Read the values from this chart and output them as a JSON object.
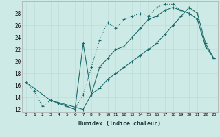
{
  "xlabel": "Humidex (Indice chaleur)",
  "xlim": [
    -0.5,
    23.5
  ],
  "ylim": [
    11.5,
    30
  ],
  "xticks": [
    0,
    1,
    2,
    3,
    4,
    5,
    6,
    7,
    8,
    9,
    10,
    11,
    12,
    13,
    14,
    15,
    16,
    17,
    18,
    19,
    20,
    21,
    22,
    23
  ],
  "yticks": [
    12,
    14,
    16,
    18,
    20,
    22,
    24,
    26,
    28
  ],
  "bg_color": "#ceeae6",
  "line_color": "#1a6b6b",
  "curve1_x": [
    0,
    1,
    2,
    3,
    4,
    5,
    6,
    7,
    8,
    9,
    10,
    11,
    12,
    13,
    14,
    15,
    16,
    17,
    18,
    19,
    20,
    21,
    22,
    23
  ],
  "curve1_y": [
    16.5,
    15.0,
    12.5,
    13.5,
    13.0,
    12.5,
    12.0,
    14.5,
    19.0,
    23.5,
    26.5,
    25.5,
    27.0,
    27.5,
    28.0,
    27.5,
    29.0,
    29.5,
    29.5,
    28.5,
    28.0,
    27.0,
    22.5,
    20.5
  ],
  "curve2_x": [
    3,
    4,
    5,
    6,
    7,
    8,
    9,
    10,
    11,
    12,
    13,
    14,
    15,
    16,
    17,
    18,
    19,
    20,
    21,
    22,
    23
  ],
  "curve2_y": [
    13.5,
    13.0,
    12.5,
    12.0,
    23.0,
    14.5,
    19.0,
    20.5,
    22.0,
    22.5,
    24.0,
    25.5,
    27.0,
    27.5,
    28.5,
    29.0,
    28.5,
    28.0,
    27.0,
    22.5,
    20.5
  ],
  "curve3_x": [
    0,
    3,
    7,
    8,
    9,
    10,
    11,
    12,
    13,
    14,
    15,
    16,
    17,
    18,
    19,
    20,
    21,
    22,
    23
  ],
  "curve3_y": [
    16.5,
    13.5,
    12.0,
    14.5,
    15.5,
    17.0,
    18.0,
    19.0,
    20.0,
    21.0,
    22.0,
    23.0,
    24.5,
    26.0,
    27.5,
    29.0,
    28.0,
    23.0,
    20.5
  ]
}
